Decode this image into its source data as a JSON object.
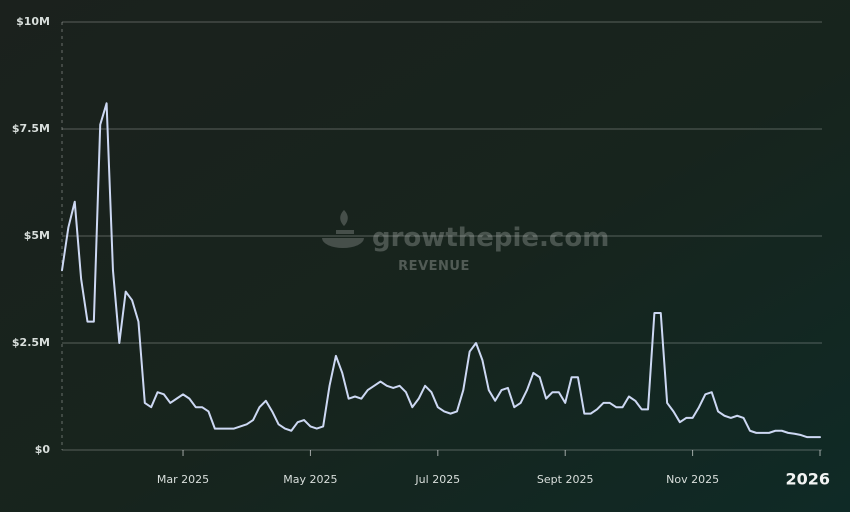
{
  "chart_data": {
    "type": "line",
    "watermark": "growthepie.com",
    "watermark_subtitle": "REVENUE",
    "categories": [
      null,
      null,
      null,
      null,
      null,
      null,
      null,
      null,
      null,
      null,
      null,
      null,
      null,
      null,
      null,
      null,
      null,
      null,
      null,
      "Mar 2025",
      null,
      null,
      null,
      null,
      null,
      null,
      null,
      null,
      null,
      null,
      null,
      null,
      null,
      null,
      null,
      null,
      null,
      null,
      null,
      "May 2025",
      null,
      null,
      null,
      null,
      null,
      null,
      null,
      null,
      null,
      null,
      null,
      null,
      null,
      null,
      null,
      null,
      null,
      null,
      null,
      "Jul 2025",
      null,
      null,
      null,
      null,
      null,
      null,
      null,
      null,
      null,
      null,
      null,
      null,
      null,
      null,
      null,
      null,
      null,
      null,
      null,
      "Sept 2025",
      null,
      null,
      null,
      null,
      null,
      null,
      null,
      null,
      null,
      null,
      null,
      null,
      null,
      null,
      null,
      null,
      null,
      null,
      null,
      "Nov 2025",
      null,
      null,
      null,
      null,
      null,
      null,
      null,
      null,
      null,
      null,
      null,
      null,
      null,
      null,
      null,
      null,
      null,
      null,
      null,
      "2026"
    ],
    "series": [
      {
        "name": "Revenue",
        "color": "#cdd8f3",
        "values": [
          4200000,
          5200000,
          5800000,
          4000000,
          3000000,
          3000000,
          7600000,
          8100000,
          4200000,
          2500000,
          3700000,
          3500000,
          3000000,
          1100000,
          1000000,
          1350000,
          1300000,
          1100000,
          1200000,
          1300000,
          1200000,
          1000000,
          1000000,
          900000,
          500000,
          500000,
          500000,
          500000,
          550000,
          600000,
          700000,
          1000000,
          1150000,
          900000,
          600000,
          500000,
          450000,
          650000,
          700000,
          550000,
          500000,
          550000,
          1500000,
          2200000,
          1800000,
          1200000,
          1250000,
          1200000,
          1400000,
          1500000,
          1600000,
          1500000,
          1450000,
          1500000,
          1350000,
          1000000,
          1200000,
          1500000,
          1350000,
          1000000,
          900000,
          850000,
          900000,
          1400000,
          2300000,
          2500000,
          2100000,
          1400000,
          1150000,
          1400000,
          1450000,
          1000000,
          1100000,
          1400000,
          1800000,
          1700000,
          1200000,
          1350000,
          1350000,
          1100000,
          1700000,
          1700000,
          850000,
          850000,
          950000,
          1100000,
          1100000,
          1000000,
          1000000,
          1250000,
          1150000,
          950000,
          950000,
          3200000,
          3200000,
          1100000,
          900000,
          650000,
          750000,
          750000,
          1000000,
          1300000,
          1350000,
          900000,
          800000,
          750000,
          800000,
          750000,
          450000,
          400000,
          400000,
          400000,
          450000,
          450000,
          400000,
          380000,
          350000,
          300000,
          300000,
          300000
        ]
      }
    ],
    "ylim": [
      0,
      10000000
    ],
    "yticks": [
      {
        "value": 0,
        "label": "$0"
      },
      {
        "value": 2500000,
        "label": "$2.5M"
      },
      {
        "value": 5000000,
        "label": "$5M"
      },
      {
        "value": 7500000,
        "label": "$7.5M"
      },
      {
        "value": 10000000,
        "label": "$10M"
      }
    ],
    "grid": true
  }
}
